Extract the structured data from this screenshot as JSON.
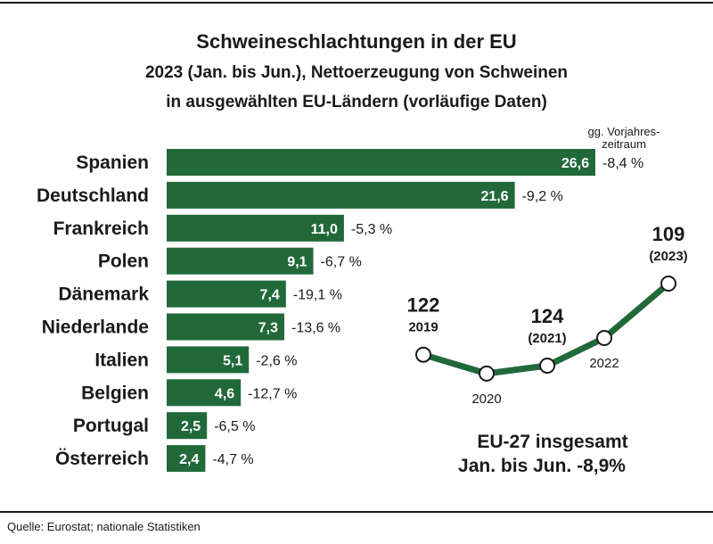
{
  "title": "Schweineschlachtungen in der EU",
  "subtitle_line1": "2023 (Jan. bis Jun.), Nettoerzeugung von Schweinen",
  "subtitle_line2": "in ausgewählten EU-Ländern (vorläufige Daten)",
  "source": "Quelle: Eurostat; nationale Statistiken",
  "change_header": [
    "gg. Vorjahres-",
    "zeitraum"
  ],
  "colors": {
    "bar": "#22693a",
    "line": "#22693a",
    "text": "#1a1a1a"
  },
  "chart_data": [
    {
      "type": "bar",
      "orientation": "horizontal",
      "categories": [
        "Spanien",
        "Deutschland",
        "Frankreich",
        "Polen",
        "Dänemark",
        "Niederlande",
        "Italien",
        "Belgien",
        "Portugal",
        "Österreich"
      ],
      "values": [
        26.6,
        21.6,
        11.0,
        9.1,
        7.4,
        7.3,
        5.1,
        4.6,
        2.5,
        2.4
      ],
      "value_labels": [
        "26,6",
        "21,6",
        "11,0",
        "9,1",
        "7,4",
        "7,3",
        "5,1",
        "4,6",
        "2,5",
        "2,4"
      ],
      "change_labels": [
        "-8,4 %",
        "-9,2 %",
        "-5,3 %",
        "-6,7 %",
        "-19,1 %",
        "-13,6 %",
        "-2,6 %",
        "-12,7 %",
        "-6,5 %",
        "-4,7 %"
      ]
    },
    {
      "type": "line",
      "x": [
        "2019",
        "2020",
        "2021",
        "2022",
        "2023"
      ],
      "y": [
        122,
        null,
        124,
        null,
        109
      ],
      "point_labels": [
        {
          "value": "122",
          "year": "2019"
        },
        {
          "value": "",
          "year": "2020"
        },
        {
          "value": "124",
          "year": "(2021)"
        },
        {
          "value": "",
          "year": "2022"
        },
        {
          "value": "109",
          "year": "(2023)"
        }
      ],
      "summary": [
        "EU-27 insgesamt",
        "Jan. bis Jun. -8,9%"
      ]
    }
  ]
}
